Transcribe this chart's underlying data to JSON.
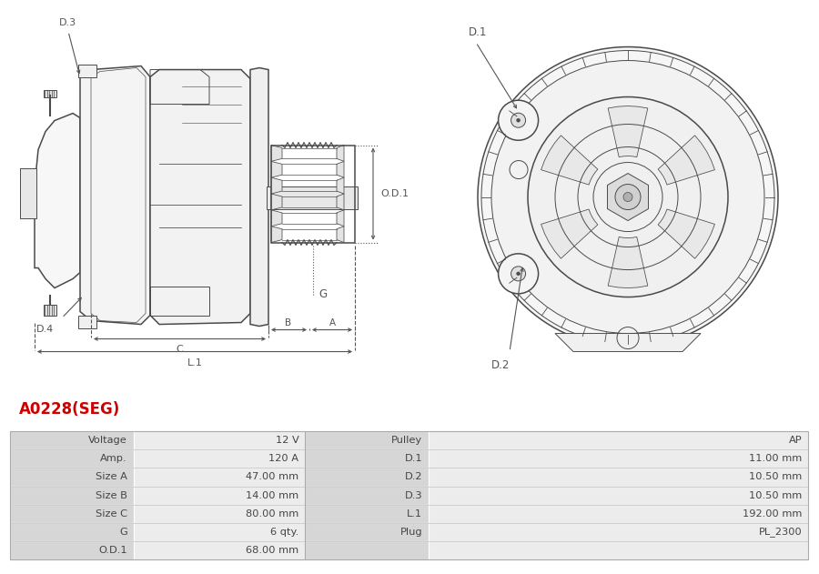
{
  "title": "A0228(SEG)",
  "title_color": "#cc0000",
  "bg_color": "#ffffff",
  "line_color": "#4a4a4a",
  "dim_color": "#555555",
  "table_text_color": "#444444",
  "rows": [
    [
      "Voltage",
      "12 V",
      "Pulley",
      "AP"
    ],
    [
      "Amp.",
      "120 A",
      "D.1",
      "11.00 mm"
    ],
    [
      "Size A",
      "47.00 mm",
      "D.2",
      "10.50 mm"
    ],
    [
      "Size B",
      "14.00 mm",
      "D.3",
      "10.50 mm"
    ],
    [
      "Size C",
      "80.00 mm",
      "L.1",
      "192.00 mm"
    ],
    [
      "G",
      "6 qty.",
      "Plug",
      "PL_2300"
    ],
    [
      "O.D.1",
      "68.00 mm",
      "",
      ""
    ]
  ]
}
